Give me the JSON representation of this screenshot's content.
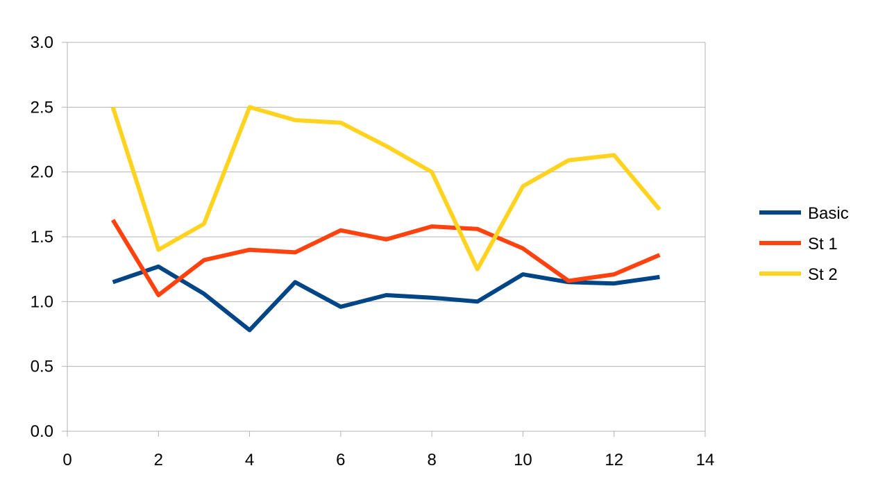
{
  "chart_data": {
    "type": "line",
    "title": "",
    "xlabel": "",
    "ylabel": "",
    "xlim": [
      0,
      14
    ],
    "ylim": [
      0,
      3.0
    ],
    "x_ticks": [
      0,
      2,
      4,
      6,
      8,
      10,
      12,
      14
    ],
    "y_ticks": [
      0.0,
      0.5,
      1.0,
      1.5,
      2.0,
      2.5,
      3.0
    ],
    "grid": true,
    "legend_position": "right",
    "x": [
      1,
      2,
      3,
      4,
      5,
      6,
      7,
      8,
      9,
      10,
      11,
      12,
      13
    ],
    "series": [
      {
        "name": "Basic",
        "color": "#004586",
        "values": [
          1.15,
          1.27,
          1.06,
          0.78,
          1.15,
          0.96,
          1.05,
          1.03,
          1.0,
          1.21,
          1.15,
          1.14,
          1.19
        ]
      },
      {
        "name": "St 1",
        "color": "#ff420e",
        "values": [
          1.63,
          1.05,
          1.32,
          1.4,
          1.38,
          1.55,
          1.48,
          1.58,
          1.56,
          1.41,
          1.16,
          1.21,
          1.36
        ]
      },
      {
        "name": "St 2",
        "color": "#ffd320",
        "values": [
          2.5,
          1.4,
          1.6,
          2.5,
          2.4,
          2.38,
          2.2,
          2.0,
          1.25,
          1.89,
          2.09,
          2.13,
          1.71
        ]
      }
    ]
  }
}
